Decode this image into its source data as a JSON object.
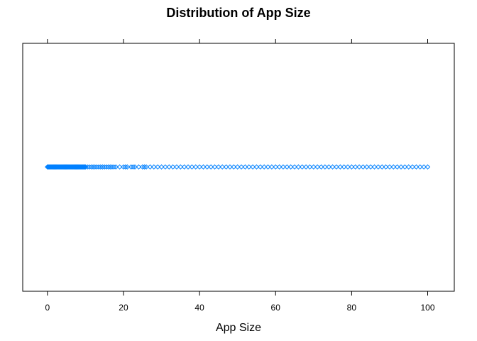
{
  "chart_data": {
    "type": "scatter",
    "title": "Distribution of App Size",
    "xlabel": "App Size",
    "ylabel": "",
    "xlim": [
      -6.5,
      107
    ],
    "xticks": [
      0,
      20,
      40,
      60,
      80,
      100
    ],
    "tick_labels": [
      "0",
      "20",
      "40",
      "60",
      "80",
      "100"
    ],
    "grid": false,
    "legend": "none",
    "point_color": "#0080ff",
    "point_shape": "diamond-open",
    "x": [
      0,
      0.2,
      0.4,
      0.6,
      0.8,
      1.0,
      1.2,
      1.4,
      1.6,
      1.8,
      2.0,
      2.2,
      2.4,
      2.6,
      2.8,
      3.0,
      3.2,
      3.4,
      3.6,
      3.8,
      4.0,
      4.2,
      4.4,
      4.6,
      4.8,
      5.0,
      5.2,
      5.4,
      5.6,
      5.8,
      6.0,
      6.2,
      6.4,
      6.6,
      6.8,
      7.0,
      7.2,
      7.4,
      7.6,
      7.8,
      8.0,
      8.2,
      8.4,
      8.6,
      8.8,
      9.0,
      9.2,
      9.4,
      9.6,
      9.8,
      10.0,
      10.5,
      11.0,
      11.5,
      12.0,
      12.5,
      13.0,
      13.5,
      14.0,
      14.5,
      15.0,
      15.5,
      16.0,
      16.5,
      17.0,
      17.5,
      18.0,
      19.0,
      20.0,
      20.5,
      21.0,
      22.0,
      22.5,
      23.0,
      24.0,
      25.0,
      25.5,
      26.0,
      27.0,
      28.0,
      29.0,
      30.0,
      31.0,
      32.0,
      33.0,
      34.0,
      35.0,
      36.0,
      37.0,
      38.0,
      39.0,
      40.0,
      41.0,
      42.0,
      43.0,
      44.0,
      45.0,
      46.0,
      47.0,
      48.0,
      49.0,
      50.0,
      51.0,
      52.0,
      53.0,
      54.0,
      55.0,
      56.0,
      57.0,
      58.0,
      59.0,
      60.0,
      61.0,
      62.0,
      63.0,
      64.0,
      65.0,
      66.0,
      67.0,
      68.0,
      69.0,
      70.0,
      71.0,
      72.0,
      73.0,
      74.0,
      75.0,
      76.0,
      77.0,
      78.0,
      79.0,
      80.0,
      81.0,
      82.0,
      83.0,
      84.0,
      85.0,
      86.0,
      87.0,
      88.0,
      89.0,
      90.0,
      91.0,
      92.0,
      93.0,
      94.0,
      95.0,
      96.0,
      97.0,
      98.0,
      99.0,
      100.0
    ]
  }
}
